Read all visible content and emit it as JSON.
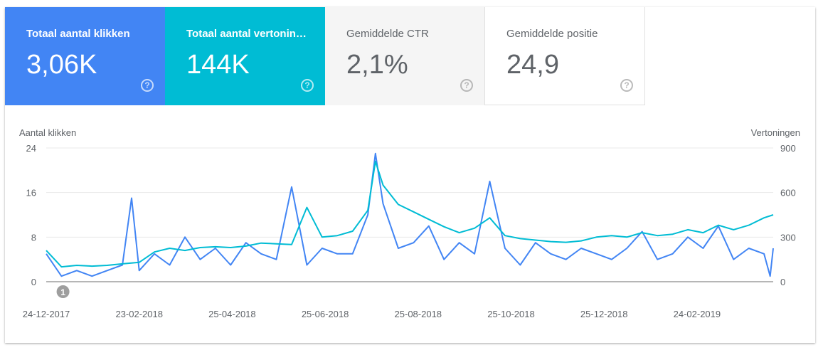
{
  "metrics": [
    {
      "label": "Totaal aantal klikken",
      "value": "3,06K",
      "help": "?"
    },
    {
      "label": "Totaal aantal vertoningen",
      "value": "144K",
      "help": "?"
    },
    {
      "label": "Gemiddelde CTR",
      "value": "2,1%",
      "help": "?"
    },
    {
      "label": "Gemiddelde positie",
      "value": "24,9",
      "help": "?"
    }
  ],
  "colors": {
    "clicks": "#4285f4",
    "impressions": "#00bcd4"
  },
  "annotation": {
    "label": "1",
    "date": "2018-01-04"
  },
  "chart_data": {
    "type": "line",
    "ylabel_left": "Aantal klikken",
    "ylabel_right": "Vertoningen",
    "ylim_left": [
      0,
      24
    ],
    "ylim_right": [
      0,
      900
    ],
    "yticks_left": [
      "0",
      "8",
      "16",
      "24"
    ],
    "yticks_right": [
      "0",
      "300",
      "600",
      "900"
    ],
    "xlim": [
      "2017-12-24",
      "2019-04-15"
    ],
    "xticks": [
      "24-12-2017",
      "23-02-2018",
      "25-04-2018",
      "25-06-2018",
      "25-08-2018",
      "25-10-2018",
      "25-12-2018",
      "24-02-2019"
    ],
    "grid": true,
    "series": [
      {
        "name": "Aantal klikken",
        "axis": "left",
        "x": [
          "2017-12-24",
          "2018-01-03",
          "2018-01-13",
          "2018-01-23",
          "2018-02-02",
          "2018-02-12",
          "2018-02-18",
          "2018-02-23",
          "2018-03-05",
          "2018-03-15",
          "2018-03-25",
          "2018-04-04",
          "2018-04-14",
          "2018-04-24",
          "2018-05-04",
          "2018-05-14",
          "2018-05-24",
          "2018-06-03",
          "2018-06-13",
          "2018-06-23",
          "2018-07-03",
          "2018-07-13",
          "2018-07-23",
          "2018-07-28",
          "2018-08-02",
          "2018-08-12",
          "2018-08-22",
          "2018-09-01",
          "2018-09-11",
          "2018-09-21",
          "2018-10-01",
          "2018-10-11",
          "2018-10-21",
          "2018-10-31",
          "2018-11-10",
          "2018-11-20",
          "2018-11-30",
          "2018-12-10",
          "2018-12-20",
          "2018-12-30",
          "2019-01-09",
          "2019-01-19",
          "2019-01-29",
          "2019-02-08",
          "2019-02-18",
          "2019-02-28",
          "2019-03-10",
          "2019-03-20",
          "2019-03-30",
          "2019-04-09",
          "2019-04-13",
          "2019-04-15"
        ],
        "y": [
          5,
          1,
          2,
          1,
          2,
          3,
          15,
          2,
          5,
          3,
          8,
          4,
          6,
          3,
          7,
          5,
          4,
          17,
          3,
          6,
          5,
          5,
          12,
          23,
          14,
          6,
          7,
          10,
          4,
          7,
          5,
          18,
          6,
          3,
          7,
          5,
          4,
          6,
          5,
          4,
          6,
          9,
          4,
          5,
          8,
          6,
          10,
          4,
          6,
          5,
          1,
          6
        ]
      },
      {
        "name": "Vertoningen",
        "axis": "right",
        "x": [
          "2017-12-24",
          "2018-01-03",
          "2018-01-13",
          "2018-01-23",
          "2018-02-02",
          "2018-02-12",
          "2018-02-23",
          "2018-03-05",
          "2018-03-15",
          "2018-03-25",
          "2018-04-04",
          "2018-04-14",
          "2018-04-24",
          "2018-05-04",
          "2018-05-14",
          "2018-05-24",
          "2018-06-03",
          "2018-06-13",
          "2018-06-23",
          "2018-07-03",
          "2018-07-13",
          "2018-07-23",
          "2018-07-28",
          "2018-08-02",
          "2018-08-12",
          "2018-08-22",
          "2018-09-01",
          "2018-09-11",
          "2018-09-21",
          "2018-10-01",
          "2018-10-11",
          "2018-10-21",
          "2018-10-31",
          "2018-11-10",
          "2018-11-20",
          "2018-11-30",
          "2018-12-10",
          "2018-12-20",
          "2018-12-30",
          "2019-01-09",
          "2019-01-19",
          "2019-01-29",
          "2019-02-08",
          "2019-02-18",
          "2019-02-28",
          "2019-03-10",
          "2019-03-20",
          "2019-03-30",
          "2019-04-09",
          "2019-04-15"
        ],
        "y": [
          210,
          100,
          110,
          105,
          110,
          120,
          130,
          200,
          225,
          210,
          230,
          235,
          230,
          240,
          260,
          255,
          250,
          500,
          300,
          310,
          340,
          480,
          810,
          650,
          520,
          470,
          420,
          370,
          330,
          360,
          430,
          310,
          290,
          280,
          270,
          265,
          275,
          300,
          310,
          300,
          330,
          310,
          320,
          350,
          330,
          380,
          350,
          380,
          430,
          450
        ]
      }
    ]
  }
}
